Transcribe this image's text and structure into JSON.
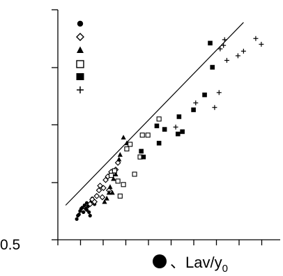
{
  "chart_data": {
    "type": "scatter",
    "title": "",
    "xlabel": "Lav/y",
    "xlabel_subscript": "0",
    "xlabel_prefix": "、",
    "ylabel": "",
    "y_tick_label": "0.5",
    "xlim": [
      0,
      10
    ],
    "ylim": [
      0,
      10
    ],
    "grid": false,
    "legend_position": "top-left",
    "reference_line": {
      "x": [
        0.35,
        8.35
      ],
      "y": [
        1.5,
        9.45
      ]
    },
    "series": [
      {
        "marker": "filled-circle",
        "points": [
          [
            0.85,
            0.9
          ],
          [
            0.9,
            1.05
          ],
          [
            0.95,
            1.1
          ],
          [
            1.0,
            1.25
          ],
          [
            1.05,
            1.35
          ],
          [
            1.1,
            1.4
          ],
          [
            1.15,
            1.2
          ],
          [
            1.2,
            1.5
          ],
          [
            1.25,
            1.35
          ],
          [
            1.3,
            1.6
          ],
          [
            1.35,
            1.45
          ],
          [
            1.4,
            1.2
          ],
          [
            1.45,
            1.05
          ],
          [
            1.55,
            1.8
          ],
          [
            1.65,
            1.55
          ],
          [
            1.3,
            1.3
          ],
          [
            1.5,
            1.65
          ]
        ]
      },
      {
        "marker": "open-diamond",
        "points": [
          [
            1.45,
            1.55
          ],
          [
            1.55,
            1.75
          ],
          [
            1.65,
            1.65
          ],
          [
            1.75,
            1.9
          ],
          [
            1.85,
            2.15
          ],
          [
            1.9,
            2.35
          ],
          [
            2.0,
            1.85
          ],
          [
            2.05,
            2.25
          ],
          [
            2.15,
            2.6
          ],
          [
            2.25,
            2.75
          ],
          [
            2.3,
            2.15
          ],
          [
            2.4,
            2.95
          ],
          [
            2.6,
            3.05
          ],
          [
            2.7,
            3.35
          ]
        ]
      },
      {
        "marker": "filled-triangle",
        "points": [
          [
            2.1,
            1.65
          ],
          [
            2.2,
            1.8
          ],
          [
            2.3,
            2.05
          ],
          [
            2.35,
            2.3
          ],
          [
            2.45,
            2.05
          ],
          [
            2.5,
            2.65
          ],
          [
            2.6,
            2.85
          ],
          [
            2.75,
            3.5
          ],
          [
            2.8,
            3.7
          ],
          [
            2.95,
            4.45
          ],
          [
            3.1,
            4.2
          ]
        ]
      },
      {
        "marker": "open-square",
        "points": [
          [
            2.4,
            2.8
          ],
          [
            2.55,
            3.0
          ],
          [
            2.7,
            2.55
          ],
          [
            2.8,
            1.9
          ],
          [
            2.95,
            2.4
          ],
          [
            3.1,
            3.95
          ],
          [
            3.25,
            4.15
          ],
          [
            3.45,
            2.85
          ],
          [
            3.7,
            3.6
          ],
          [
            3.8,
            4.55
          ],
          [
            4.05,
            4.55
          ],
          [
            4.55,
            5.25
          ]
        ]
      },
      {
        "marker": "filled-square",
        "points": [
          [
            3.75,
            3.85
          ],
          [
            3.85,
            3.6
          ],
          [
            4.45,
            4.95
          ],
          [
            4.55,
            4.2
          ],
          [
            4.8,
            4.8
          ],
          [
            5.4,
            4.6
          ],
          [
            5.45,
            5.35
          ],
          [
            5.6,
            4.7
          ],
          [
            6.1,
            5.65
          ],
          [
            6.6,
            6.3
          ],
          [
            6.85,
            8.55
          ],
          [
            6.95,
            7.5
          ]
        ]
      },
      {
        "marker": "plus",
        "points": [
          [
            5.3,
            4.9
          ],
          [
            6.2,
            5.95
          ],
          [
            7.05,
            5.75
          ],
          [
            7.25,
            6.4
          ],
          [
            7.3,
            8.3
          ],
          [
            7.45,
            8.45
          ],
          [
            7.5,
            8.7
          ],
          [
            7.6,
            7.8
          ],
          [
            8.1,
            8.0
          ],
          [
            8.35,
            8.2
          ],
          [
            8.9,
            8.75
          ],
          [
            9.15,
            8.5
          ]
        ]
      }
    ]
  }
}
